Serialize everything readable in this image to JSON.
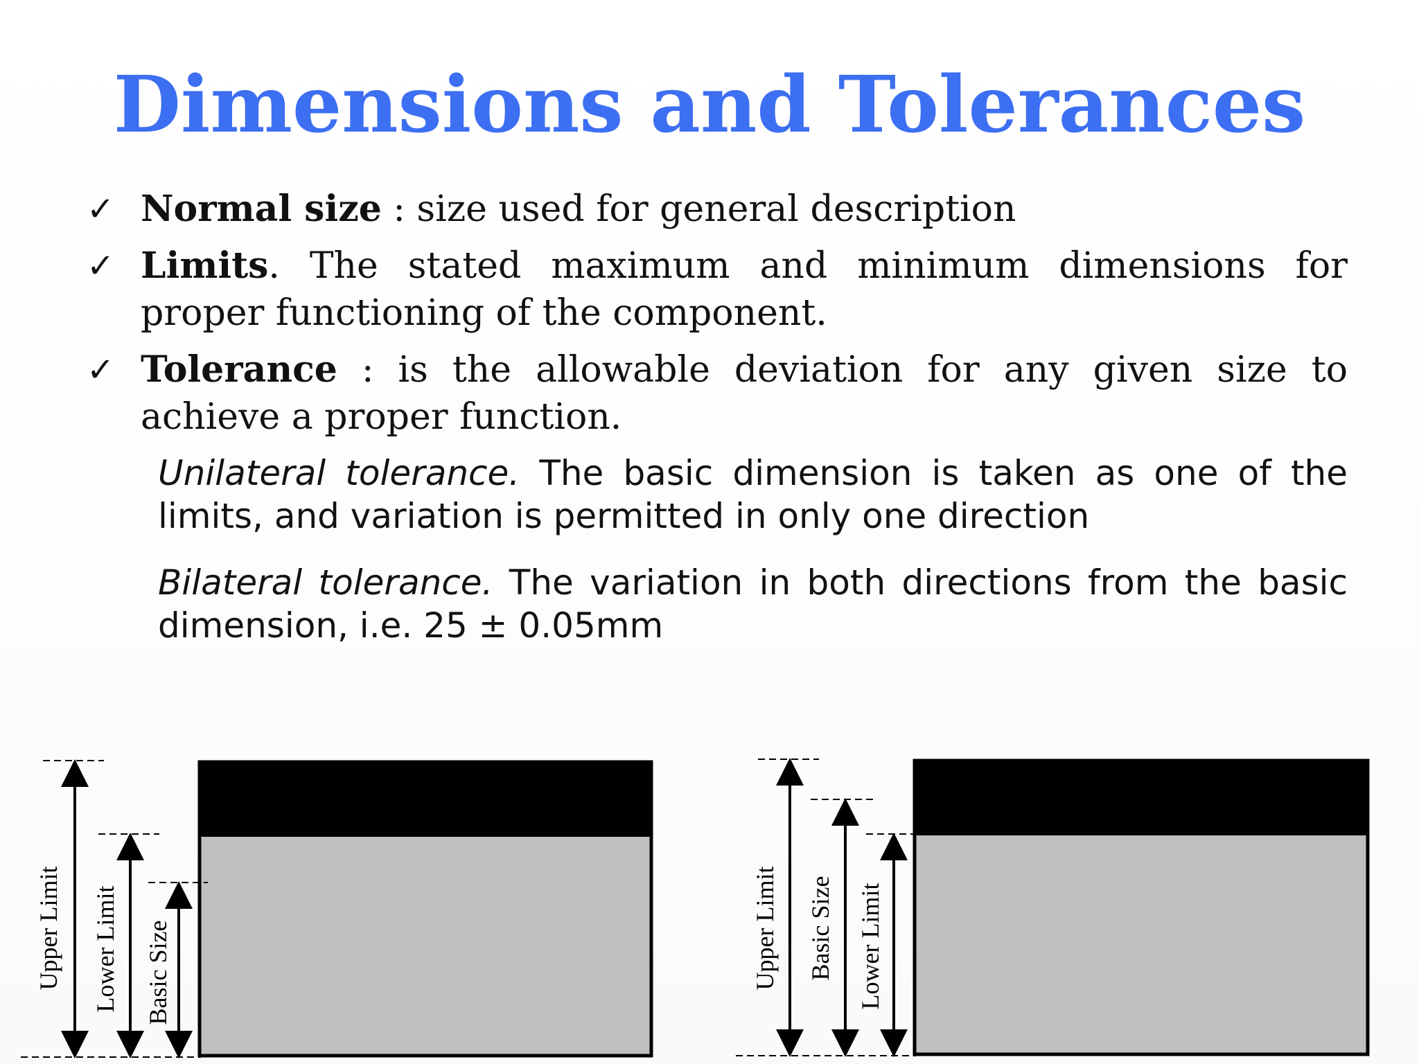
{
  "title": "Dimensions and Tolerances",
  "bullets": [
    {
      "icon": "checkmark-icon",
      "term": "Normal size",
      "text": " : size used for general description"
    },
    {
      "icon": "checkmark-icon",
      "term": "Limits",
      "text": ". The stated maximum and minimum dimensions for proper functioning of the component."
    },
    {
      "icon": "checkmark-icon",
      "term": "Tolerance",
      "text": " : is the allowable deviation for any given size to achieve a proper function."
    }
  ],
  "subpoints": [
    {
      "term": "Unilateral tolerance.",
      "text": " The basic dimension is taken as one of the limits, and variation is permitted in only one direction"
    },
    {
      "term": "Bilateral tolerance.",
      "text": " The variation in both directions from the basic dimension, i.e. 25 ± 0.05mm"
    }
  ],
  "diagrams": {
    "left": {
      "labels": [
        "Upper Limit",
        "Lower Limit",
        "Basic Size"
      ]
    },
    "right": {
      "labels": [
        "Upper Limit",
        "Basic Size",
        "Lower Limit"
      ]
    }
  },
  "colors": {
    "title": "#3d6ff2",
    "tolerance_band": "#000000",
    "part_fill": "#c0bfc1"
  }
}
